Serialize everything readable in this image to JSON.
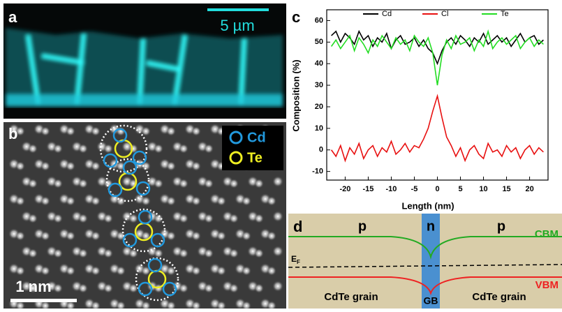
{
  "panel_a": {
    "label": "a",
    "scale_bar": "5 µm"
  },
  "panel_b": {
    "label": "b",
    "legend": [
      "Cd",
      "Te"
    ],
    "scale_bar": "1 nm"
  },
  "chart_data": {
    "type": "line",
    "label": "c",
    "x_label": "Length (nm)",
    "y_label": "Composition (%)",
    "x": [
      -23,
      -22,
      -21,
      -20,
      -19,
      -18,
      -17,
      -16,
      -15,
      -14,
      -13,
      -12,
      -11,
      -10,
      -9,
      -8,
      -7,
      -6,
      -5,
      -4,
      -3,
      -2,
      -1,
      0,
      1,
      2,
      3,
      4,
      5,
      6,
      7,
      8,
      9,
      10,
      11,
      12,
      13,
      14,
      15,
      16,
      17,
      18,
      19,
      20,
      21,
      22,
      23
    ],
    "series": [
      {
        "name": "Cd",
        "color": "#000000",
        "values": [
          53,
          55,
          50,
          54,
          52,
          49,
          55,
          51,
          53,
          48,
          52,
          50,
          54,
          47,
          51,
          53,
          49,
          50,
          52,
          48,
          51,
          47,
          45,
          40,
          46,
          50,
          52,
          49,
          53,
          51,
          48,
          52,
          50,
          54,
          49,
          51,
          53,
          50,
          52,
          48,
          51,
          54,
          50,
          52,
          53,
          49,
          51
        ]
      },
      {
        "name": "Cl",
        "color": "#e81010",
        "values": [
          0,
          -3,
          2,
          -5,
          1,
          -2,
          3,
          -4,
          0,
          2,
          -3,
          1,
          -1,
          4,
          -2,
          0,
          3,
          -1,
          2,
          1,
          5,
          10,
          18,
          25,
          15,
          6,
          2,
          -3,
          1,
          -5,
          0,
          2,
          -2,
          -4,
          3,
          -1,
          0,
          -3,
          2,
          -1,
          1,
          -4,
          0,
          2,
          -2,
          1,
          -1
        ]
      },
      {
        "name": "Te",
        "color": "#22dd22",
        "values": [
          48,
          51,
          47,
          50,
          53,
          46,
          52,
          49,
          45,
          51,
          48,
          53,
          50,
          47,
          52,
          49,
          51,
          46,
          53,
          50,
          48,
          52,
          45,
          30,
          44,
          51,
          47,
          53,
          49,
          50,
          52,
          46,
          51,
          48,
          55,
          47,
          50,
          52,
          49,
          51,
          53,
          47,
          50,
          52,
          48,
          51,
          49
        ]
      }
    ],
    "xlim": [
      -24,
      24
    ],
    "xticks": [
      -20,
      -15,
      -10,
      -5,
      0,
      5,
      10,
      15,
      20
    ],
    "ylim": [
      -14,
      65
    ],
    "yticks": [
      -10,
      0,
      10,
      20,
      30,
      40,
      50,
      60
    ]
  },
  "panel_d": {
    "label": "d",
    "regions": [
      "p",
      "n",
      "p"
    ],
    "cbm": "CBM",
    "ef": "E",
    "ef_sub": "F",
    "vbm": "VBM",
    "left": "CdTe grain",
    "gb": "GB",
    "right": "CdTe grain"
  }
}
